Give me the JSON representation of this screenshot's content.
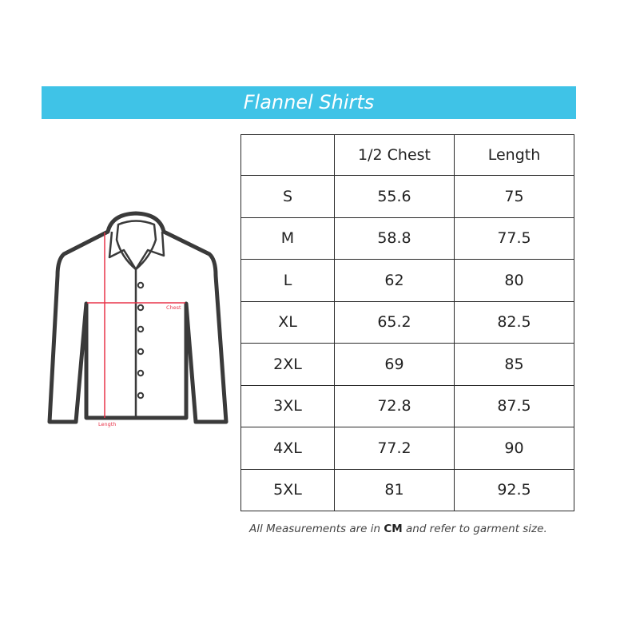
{
  "title": "Flannel Shirts",
  "diagram_labels": {
    "chest": "Chest",
    "length": "Length"
  },
  "table": {
    "headers": [
      "",
      "1/2 Chest",
      "Length"
    ],
    "rows": [
      [
        "S",
        "55.6",
        "75"
      ],
      [
        "M",
        "58.8",
        "77.5"
      ],
      [
        "L",
        "62",
        "80"
      ],
      [
        "XL",
        "65.2",
        "82.5"
      ],
      [
        "2XL",
        "69",
        "85"
      ],
      [
        "3XL",
        "72.8",
        "87.5"
      ],
      [
        "4XL",
        "77.2",
        "90"
      ],
      [
        "5XL",
        "81",
        "92.5"
      ]
    ]
  },
  "note": {
    "before": "All Measurements are in ",
    "unit": "CM",
    "after": " and refer to garment size."
  },
  "colors": {
    "banner": "#3fc3e7",
    "measure_line": "#e8354a",
    "outline": "#3a3a3a"
  }
}
